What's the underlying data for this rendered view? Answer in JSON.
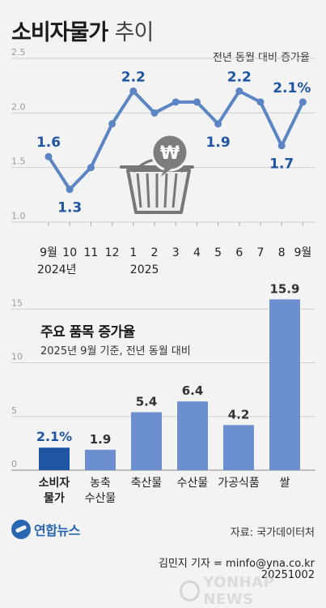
{
  "header": {
    "title_main": "소비자물가",
    "title_light": "추이"
  },
  "chart_data": [
    {
      "type": "line",
      "subtitle": "전년 동월 대비 증가율",
      "x": [
        "9월",
        "10",
        "11",
        "12",
        "1",
        "2",
        "3",
        "4",
        "5",
        "6",
        "7",
        "8",
        "9월"
      ],
      "year_labels": [
        "2024년",
        "2025"
      ],
      "values": [
        1.6,
        1.3,
        1.5,
        1.9,
        2.2,
        2.0,
        2.1,
        2.1,
        1.9,
        2.2,
        2.1,
        1.7,
        2.1
      ],
      "data_labels": [
        "1.6",
        "1.3",
        "",
        "",
        "2.2",
        "",
        "",
        "",
        "1.9",
        "2.2",
        "",
        "1.7",
        "2.1%"
      ],
      "yticks": [
        "1.0",
        "1.5",
        "2.0",
        "2.5"
      ],
      "ylim": [
        1.0,
        2.5
      ],
      "grid": true,
      "color": "#5b85c5"
    },
    {
      "type": "bar",
      "title": "주요 품목 증가율",
      "subtitle": "2025년 9월 기준, 전년 동월 대비",
      "categories": [
        "소비자\n물가",
        "농축\n수산물",
        "축산물",
        "수산물",
        "가공식품",
        "쌀"
      ],
      "values": [
        2.1,
        1.9,
        5.4,
        6.4,
        4.2,
        15.9
      ],
      "data_labels": [
        "2.1%",
        "1.9",
        "5.4",
        "6.4",
        "4.2",
        "15.9"
      ],
      "yticks": [
        "0",
        "5",
        "10",
        "15"
      ],
      "ylim": [
        0,
        16
      ],
      "grid": true,
      "colors": [
        "#1f56a4",
        "#6b8fcf",
        "#6b8fcf",
        "#6b8fcf",
        "#6b8fcf",
        "#6b8fcf"
      ]
    }
  ],
  "footer": {
    "logo_text": "연합뉴스",
    "source": "자료: 국가데이터처",
    "credit": "김민지 기자 = minfo@yna.co.kr",
    "date": "20251002",
    "watermark": "YONHAP NEWS"
  }
}
